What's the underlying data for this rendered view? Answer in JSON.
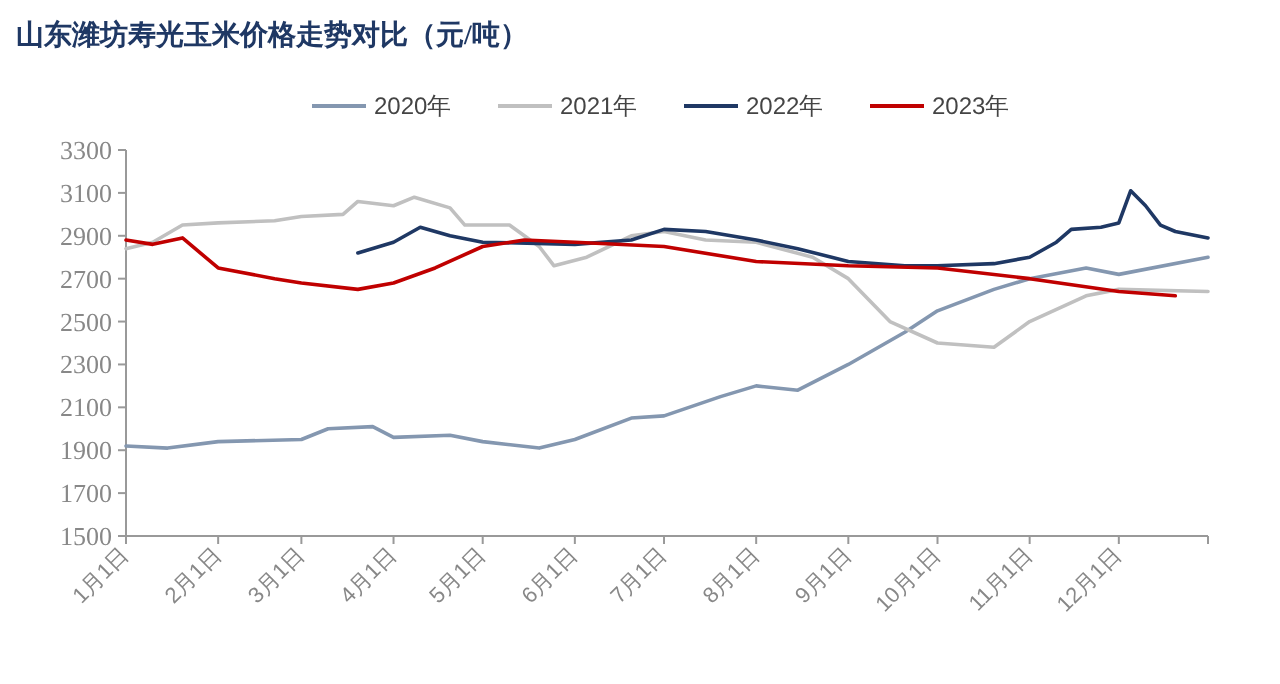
{
  "chart_data": {
    "type": "line",
    "title": "山东潍坊寿光玉米价格走势对比（元/吨）",
    "legend": "top",
    "xlim": [
      "--01-01",
      "--12-31"
    ],
    "xticks": [
      {
        "value": "--01-01",
        "label": "1月1日"
      },
      {
        "value": "--02-01",
        "label": "2月1日"
      },
      {
        "value": "--03-01",
        "label": "3月1日"
      },
      {
        "value": "--04-01",
        "label": "4月1日"
      },
      {
        "value": "--05-01",
        "label": "5月1日"
      },
      {
        "value": "--06-01",
        "label": "6月1日"
      },
      {
        "value": "--07-01",
        "label": "7月1日"
      },
      {
        "value": "--08-01",
        "label": "8月1日"
      },
      {
        "value": "--09-01",
        "label": "9月1日"
      },
      {
        "value": "--10-01",
        "label": "10月1日"
      },
      {
        "value": "--11-01",
        "label": "11月1日"
      },
      {
        "value": "--12-01",
        "label": "12月1日"
      },
      {
        "value": "--12-31",
        "label": null
      }
    ],
    "ylim": [
      1500,
      3300
    ],
    "yticks": [
      1500,
      1700,
      1900,
      2100,
      2300,
      2500,
      2700,
      2900,
      3100,
      3300
    ],
    "series": [
      {
        "name": "2020年",
        "color": "#8497b0",
        "x": [
          "--01-01",
          "--01-15",
          "--02-01",
          "--03-01",
          "--03-10",
          "--03-25",
          "--04-01",
          "--04-20",
          "--05-01",
          "--05-20",
          "--06-01",
          "--06-20",
          "--07-01",
          "--07-20",
          "--08-01",
          "--08-15",
          "--09-01",
          "--09-20",
          "--10-01",
          "--10-20",
          "--11-01",
          "--11-20",
          "--12-01",
          "--12-31"
        ],
        "values": [
          1920,
          1910,
          1940,
          1950,
          2000,
          2010,
          1960,
          1970,
          1940,
          1910,
          1950,
          2050,
          2060,
          2150,
          2200,
          2180,
          2300,
          2450,
          2550,
          2650,
          2700,
          2750,
          2720,
          2800
        ]
      },
      {
        "name": "2021年",
        "color": "#c0c0c0",
        "x": [
          "--01-01",
          "--01-10",
          "--01-20",
          "--02-01",
          "--02-20",
          "--03-01",
          "--03-15",
          "--03-20",
          "--04-01",
          "--04-08",
          "--04-20",
          "--04-25",
          "--05-10",
          "--05-20",
          "--05-25",
          "--06-05",
          "--06-20",
          "--07-01",
          "--07-15",
          "--08-01",
          "--08-20",
          "--09-01",
          "--09-15",
          "--10-01",
          "--10-20",
          "--11-01",
          "--11-20",
          "--12-01",
          "--12-31"
        ],
        "values": [
          2840,
          2870,
          2950,
          2960,
          2970,
          2990,
          3000,
          3060,
          3040,
          3080,
          3030,
          2950,
          2950,
          2850,
          2760,
          2800,
          2900,
          2920,
          2880,
          2870,
          2800,
          2700,
          2500,
          2400,
          2380,
          2500,
          2620,
          2650,
          2640
        ]
      },
      {
        "name": "2022年",
        "color": "#1f3864",
        "x": [
          "--03-20",
          "--04-01",
          "--04-10",
          "--04-20",
          "--05-01",
          "--06-01",
          "--06-20",
          "--07-01",
          "--07-15",
          "--08-01",
          "--08-15",
          "--09-01",
          "--09-20",
          "--10-01",
          "--10-20",
          "--11-01",
          "--11-10",
          "--11-15",
          "--11-25",
          "--12-01",
          "--12-05",
          "--12-10",
          "--12-15",
          "--12-20",
          "--12-31"
        ],
        "values": [
          2820,
          2870,
          2940,
          2900,
          2870,
          2860,
          2880,
          2930,
          2920,
          2880,
          2840,
          2780,
          2760,
          2760,
          2770,
          2800,
          2870,
          2930,
          2940,
          2960,
          3110,
          3040,
          2950,
          2920,
          2890
        ]
      },
      {
        "name": "2023年",
        "color": "#c00000",
        "x": [
          "--01-01",
          "--01-10",
          "--01-20",
          "--02-01",
          "--02-20",
          "--03-01",
          "--03-20",
          "--04-01",
          "--04-15",
          "--05-01",
          "--05-15",
          "--06-01",
          "--07-01",
          "--08-01",
          "--09-01",
          "--10-01",
          "--11-01",
          "--12-01",
          "--12-20"
        ],
        "values": [
          2880,
          2860,
          2890,
          2750,
          2700,
          2680,
          2650,
          2680,
          2750,
          2850,
          2880,
          2870,
          2850,
          2780,
          2760,
          2750,
          2700,
          2640,
          2620
        ]
      }
    ]
  }
}
